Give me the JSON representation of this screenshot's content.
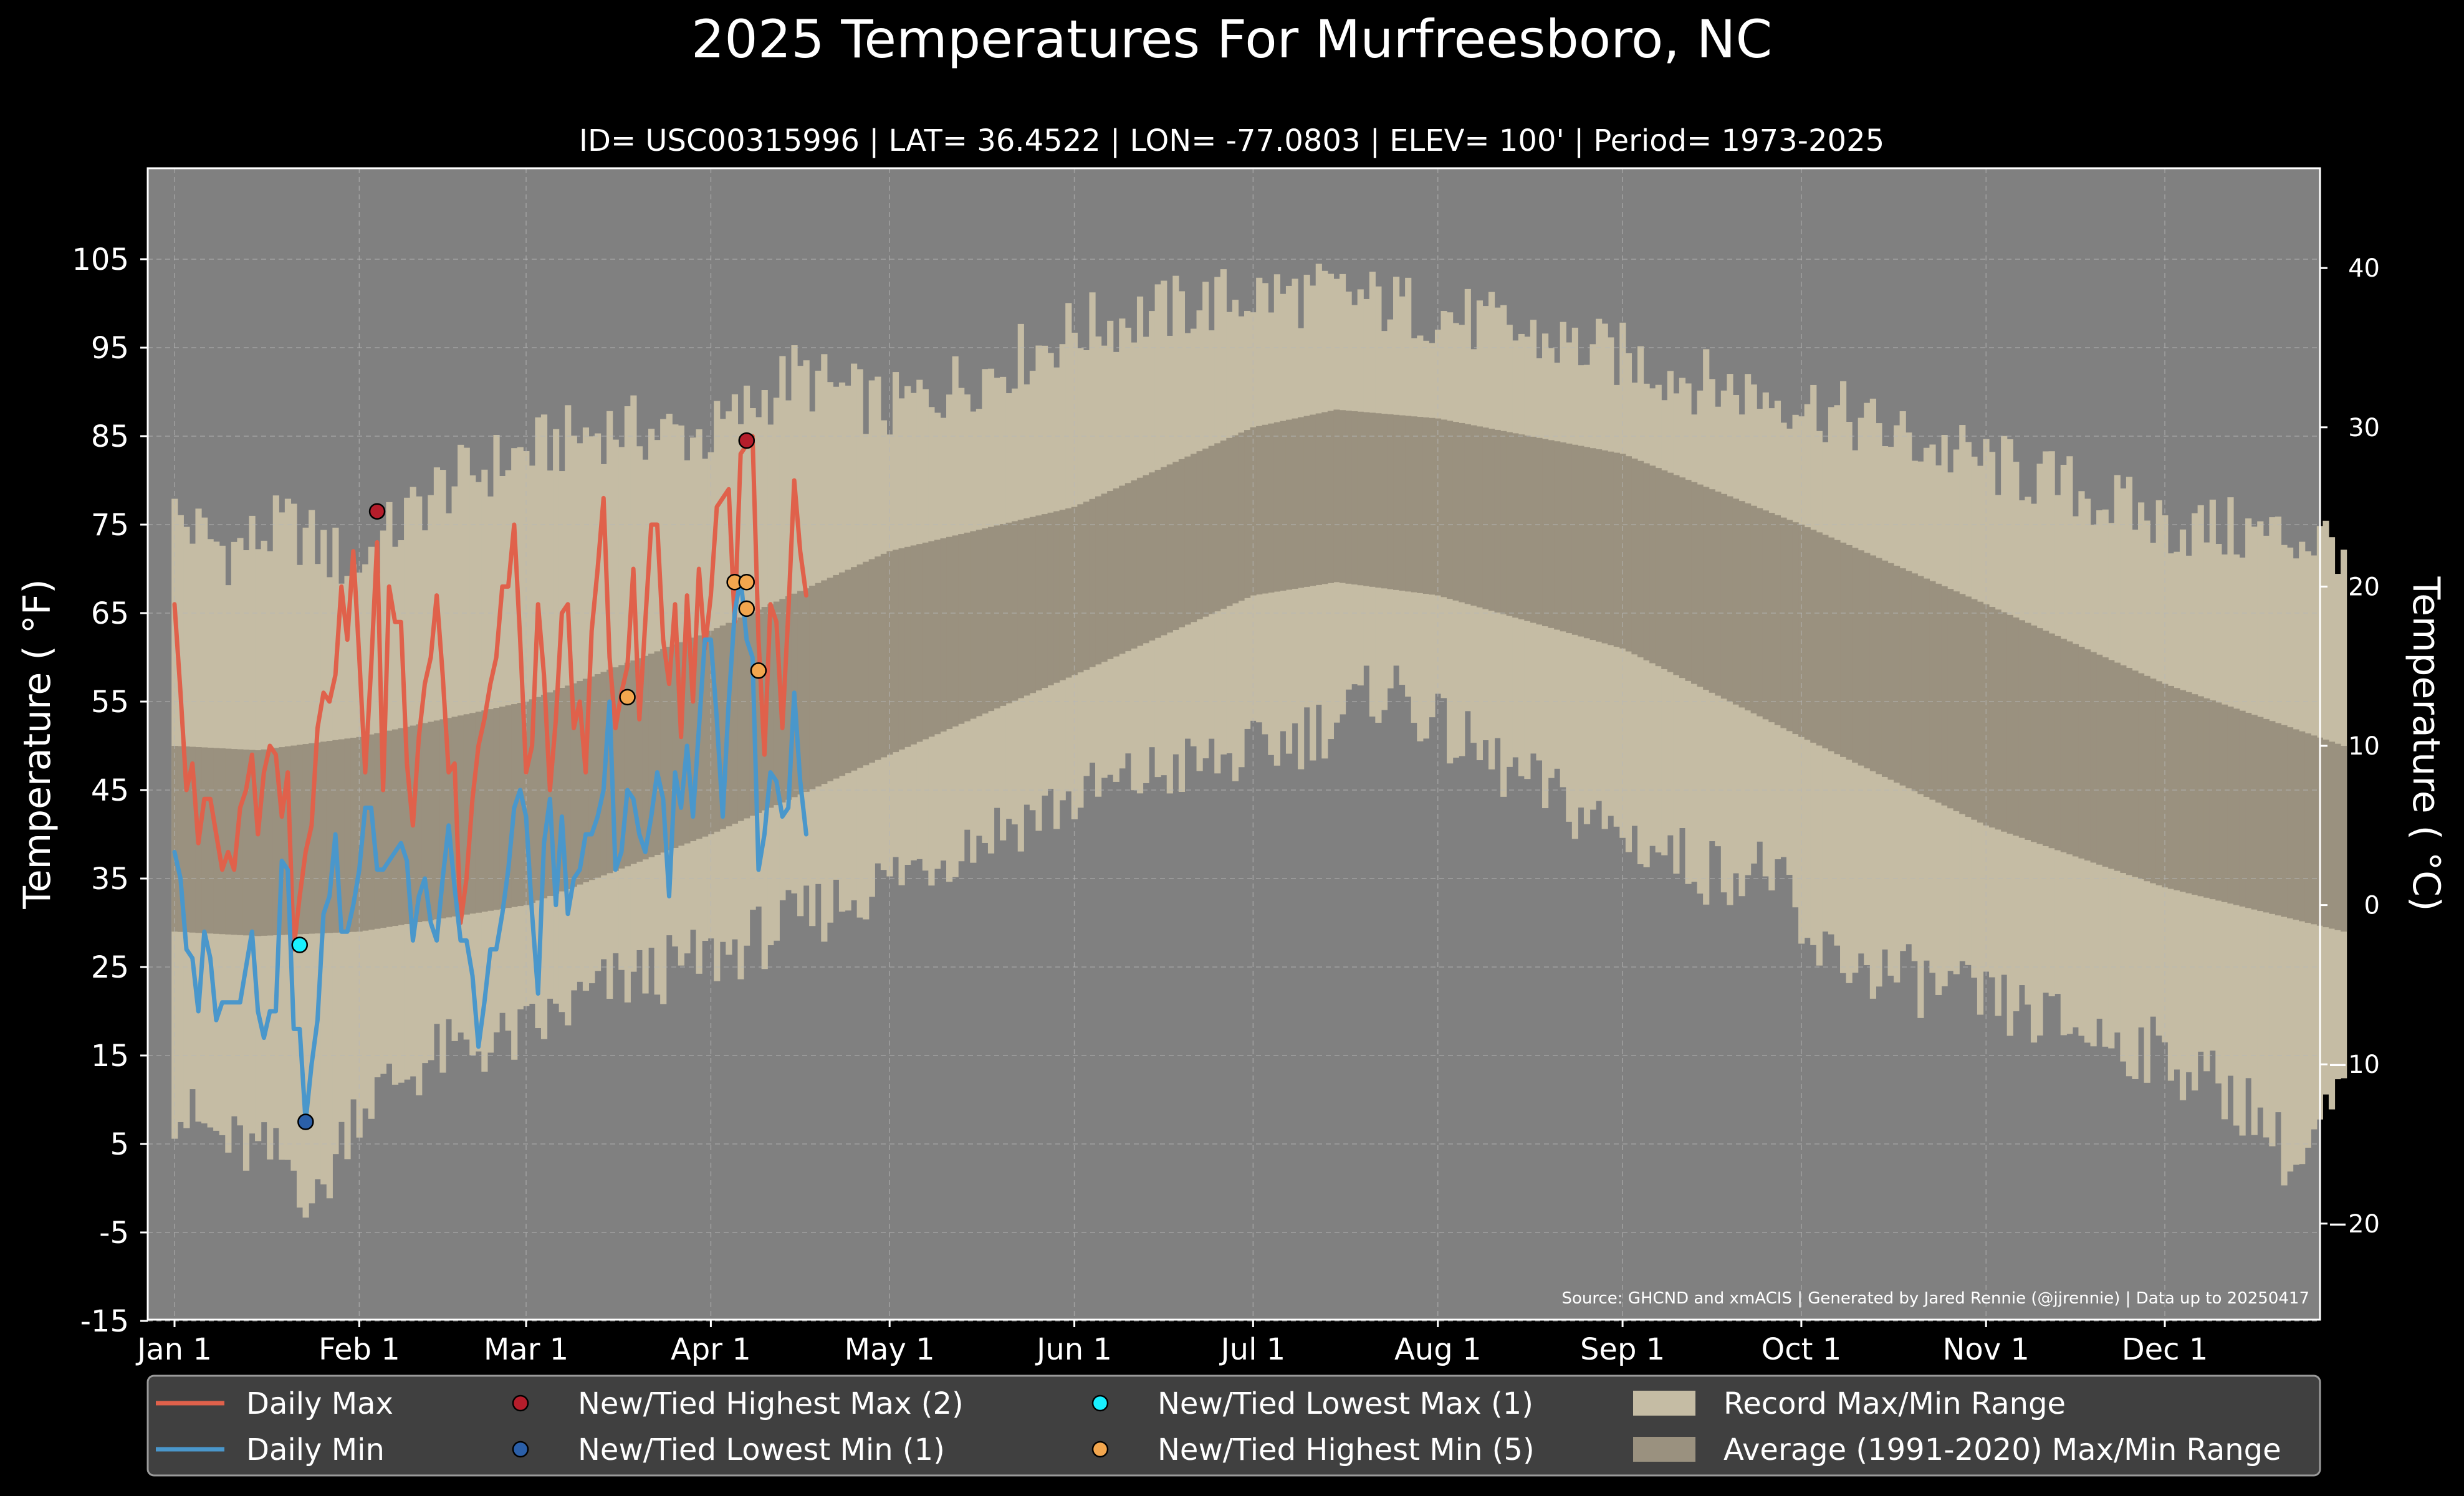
{
  "chart_data": {
    "type": "line",
    "title": "2025 Temperatures For Murfreesboro, NC",
    "subtitle": "ID= USC00315996 | LAT= 36.4522 | LON= -77.0803 | ELEV= 100' | Period= 1973-2025",
    "ylabel": "Temperature ( °F)",
    "ylabel_right": "Temperature ( °C)",
    "source": "Source: GHCND and xmACIS | Generated by Jared Rennie (@jjrennie) | Data up to 20250417",
    "ylim": [
      -15,
      115
    ],
    "y_ticks": [
      -15,
      -5,
      5,
      15,
      25,
      35,
      45,
      55,
      65,
      75,
      85,
      95,
      105
    ],
    "y_ticks_right": [
      -20,
      -10,
      0,
      10,
      20,
      30,
      40
    ],
    "y_tick_labels_right": [
      "−20",
      "−10",
      "0",
      "10",
      "20",
      "30",
      "40"
    ],
    "x_ticks": [
      {
        "day": 1,
        "label": "Jan 1"
      },
      {
        "day": 32,
        "label": "Feb 1"
      },
      {
        "day": 60,
        "label": "Mar 1"
      },
      {
        "day": 91,
        "label": "Apr 1"
      },
      {
        "day": 121,
        "label": "May 1"
      },
      {
        "day": 152,
        "label": "Jun 1"
      },
      {
        "day": 182,
        "label": "Jul 1"
      },
      {
        "day": 213,
        "label": "Aug 1"
      },
      {
        "day": 244,
        "label": "Sep 1"
      },
      {
        "day": 274,
        "label": "Oct 1"
      },
      {
        "day": 305,
        "label": "Nov 1"
      },
      {
        "day": 335,
        "label": "Dec 1"
      }
    ],
    "grid": true,
    "legend_position": "bottom",
    "record_max_anchors": [
      [
        1,
        76
      ],
      [
        10,
        72
      ],
      [
        20,
        75
      ],
      [
        31,
        70
      ],
      [
        45,
        79
      ],
      [
        59,
        83
      ],
      [
        74,
        86
      ],
      [
        91,
        85
      ],
      [
        105,
        92
      ],
      [
        121,
        88
      ],
      [
        140,
        93
      ],
      [
        152,
        97
      ],
      [
        166,
        99
      ],
      [
        182,
        101
      ],
      [
        196,
        101
      ],
      [
        213,
        99
      ],
      [
        230,
        96
      ],
      [
        244,
        94
      ],
      [
        258,
        91
      ],
      [
        274,
        89
      ],
      [
        290,
        85
      ],
      [
        305,
        82
      ],
      [
        320,
        79
      ],
      [
        335,
        75
      ],
      [
        350,
        74
      ],
      [
        365,
        73
      ]
    ],
    "record_min_anchors": [
      [
        1,
        9
      ],
      [
        10,
        5
      ],
      [
        20,
        3
      ],
      [
        25,
        -2
      ],
      [
        31,
        9
      ],
      [
        45,
        15
      ],
      [
        59,
        17
      ],
      [
        74,
        23
      ],
      [
        91,
        26
      ],
      [
        105,
        30
      ],
      [
        121,
        35
      ],
      [
        140,
        41
      ],
      [
        152,
        44
      ],
      [
        166,
        47
      ],
      [
        182,
        49
      ],
      [
        196,
        53
      ],
      [
        205,
        57
      ],
      [
        213,
        52
      ],
      [
        230,
        45
      ],
      [
        244,
        40
      ],
      [
        258,
        36
      ],
      [
        270,
        36
      ],
      [
        274,
        27
      ],
      [
        290,
        24
      ],
      [
        305,
        21
      ],
      [
        320,
        18
      ],
      [
        335,
        15
      ],
      [
        350,
        9
      ],
      [
        357,
        2
      ],
      [
        365,
        11
      ]
    ],
    "avg_max_anchors": [
      [
        1,
        50
      ],
      [
        15,
        49.5
      ],
      [
        32,
        51
      ],
      [
        60,
        55
      ],
      [
        91,
        63
      ],
      [
        121,
        72
      ],
      [
        152,
        77
      ],
      [
        182,
        86
      ],
      [
        196,
        88
      ],
      [
        213,
        87
      ],
      [
        244,
        83
      ],
      [
        274,
        75
      ],
      [
        305,
        66
      ],
      [
        335,
        57
      ],
      [
        365,
        50
      ]
    ],
    "avg_min_anchors": [
      [
        1,
        29
      ],
      [
        15,
        28.5
      ],
      [
        32,
        29
      ],
      [
        60,
        32
      ],
      [
        91,
        40
      ],
      [
        121,
        49
      ],
      [
        152,
        58
      ],
      [
        182,
        67
      ],
      [
        196,
        68.5
      ],
      [
        213,
        67
      ],
      [
        244,
        61
      ],
      [
        274,
        51
      ],
      [
        305,
        41
      ],
      [
        335,
        34
      ],
      [
        365,
        29
      ]
    ],
    "series": [
      {
        "name": "Daily Max",
        "color": "#e0614b",
        "x": [
          1,
          2,
          3,
          4,
          5,
          6,
          7,
          8,
          9,
          10,
          11,
          12,
          13,
          14,
          15,
          16,
          17,
          18,
          19,
          20,
          21,
          22,
          23,
          24,
          25,
          26,
          27,
          28,
          29,
          30,
          31,
          32,
          33,
          34,
          35,
          36,
          37,
          38,
          39,
          40,
          41,
          42,
          43,
          44,
          45,
          46,
          47,
          48,
          49,
          50,
          51,
          52,
          53,
          54,
          55,
          56,
          57,
          58,
          59,
          60,
          61,
          62,
          63,
          64,
          65,
          66,
          67,
          68,
          69,
          70,
          71,
          72,
          73,
          74,
          75,
          76,
          77,
          78,
          79,
          80,
          81,
          82,
          83,
          84,
          85,
          86,
          87,
          88,
          89,
          90,
          91,
          92,
          93,
          94,
          95,
          96,
          97,
          98,
          99,
          100,
          101,
          102,
          103,
          104,
          105,
          106,
          107
        ],
        "y": [
          66,
          56,
          45,
          48,
          39,
          44,
          44,
          40,
          36,
          38,
          36,
          43,
          45,
          49,
          40,
          47,
          50,
          49,
          42,
          47,
          27,
          33,
          38,
          41,
          52,
          56,
          55,
          58,
          68,
          62,
          72,
          60,
          47,
          59,
          73,
          45,
          68,
          64,
          64,
          48,
          41,
          51,
          57,
          60,
          67,
          58,
          47,
          48,
          30,
          35,
          44,
          50,
          53,
          57,
          60,
          68,
          68,
          75,
          62,
          47,
          50,
          66,
          58,
          45,
          53,
          65,
          66,
          52,
          55,
          47,
          63,
          70,
          78,
          60,
          52,
          56,
          59,
          70,
          53,
          64,
          75,
          75,
          62,
          57,
          66,
          51,
          67,
          55,
          70,
          61,
          67,
          77,
          78,
          79,
          64,
          83,
          84,
          85,
          62,
          49,
          66,
          64,
          52,
          65,
          80,
          72,
          67
        ]
      },
      {
        "name": "Daily Min",
        "color": "#4a97cb",
        "x": [
          1,
          2,
          3,
          4,
          5,
          6,
          7,
          8,
          9,
          10,
          11,
          12,
          13,
          14,
          15,
          16,
          17,
          18,
          19,
          20,
          21,
          22,
          23,
          24,
          25,
          26,
          27,
          28,
          29,
          30,
          31,
          32,
          33,
          34,
          35,
          36,
          37,
          38,
          39,
          40,
          41,
          42,
          43,
          44,
          45,
          46,
          47,
          48,
          49,
          50,
          51,
          52,
          53,
          54,
          55,
          56,
          57,
          58,
          59,
          60,
          61,
          62,
          63,
          64,
          65,
          66,
          67,
          68,
          69,
          70,
          71,
          72,
          73,
          74,
          75,
          76,
          77,
          78,
          79,
          80,
          81,
          82,
          83,
          84,
          85,
          86,
          87,
          88,
          89,
          90,
          91,
          92,
          93,
          94,
          95,
          96,
          97,
          98,
          99,
          100,
          101,
          102,
          103,
          104,
          105,
          106,
          107
        ],
        "y": [
          38,
          35,
          27,
          26,
          20,
          29,
          26,
          19,
          21,
          21,
          21,
          21,
          25,
          29,
          20,
          17,
          20,
          20,
          37,
          36,
          18,
          18,
          7.5,
          14,
          19,
          31,
          33,
          40,
          29,
          29,
          32,
          36,
          43,
          43,
          36,
          36,
          37,
          38,
          39,
          37,
          28,
          33,
          35,
          30,
          28,
          35,
          41,
          34,
          28,
          28,
          24,
          16,
          21,
          27,
          27,
          31,
          36,
          43,
          45,
          42,
          31,
          22,
          39,
          44,
          32,
          42,
          31,
          35,
          36,
          40,
          40,
          42,
          45,
          55,
          36,
          38,
          45,
          44,
          40,
          38,
          42,
          47,
          44,
          33,
          47,
          43,
          50,
          42,
          52,
          62,
          62,
          53,
          42,
          55,
          65,
          69,
          62,
          60,
          36,
          40,
          47,
          46,
          42,
          43,
          56,
          46,
          40
        ]
      }
    ],
    "markers": [
      {
        "name": "New/Tied Highest Max (2)",
        "color": "#b51d2b",
        "points": [
          [
            35,
            76.5
          ],
          [
            97,
            84.5
          ]
        ]
      },
      {
        "name": "New/Tied Lowest Min (1)",
        "color": "#2b5fa8",
        "points": [
          [
            23,
            7.5
          ]
        ]
      },
      {
        "name": "New/Tied Lowest Max (1)",
        "color": "#19f0ff",
        "points": [
          [
            22,
            27.5
          ]
        ]
      },
      {
        "name": "New/Tied Highest Min (5)",
        "color": "#f2a64e",
        "points": [
          [
            77,
            55.5
          ],
          [
            95,
            68.5
          ],
          [
            97,
            68.5
          ],
          [
            97,
            65.5
          ],
          [
            99,
            58.5
          ]
        ]
      }
    ],
    "legend": [
      {
        "kind": "line",
        "label": "Daily Max",
        "color": "#e0614b"
      },
      {
        "kind": "line",
        "label": "Daily Min",
        "color": "#4a97cb"
      },
      {
        "kind": "marker",
        "label": "New/Tied Highest Max (2)",
        "color": "#b51d2b"
      },
      {
        "kind": "marker",
        "label": "New/Tied Lowest Min (1)",
        "color": "#2b5fa8"
      },
      {
        "kind": "marker",
        "label": "New/Tied Lowest Max (1)",
        "color": "#19f0ff"
      },
      {
        "kind": "marker",
        "label": "New/Tied Highest Min (5)",
        "color": "#f2a64e"
      },
      {
        "kind": "patch",
        "label": "Record Max/Min Range",
        "color": "#c5bca4"
      },
      {
        "kind": "patch",
        "label": "Average (1991-2020) Max/Min Range",
        "color": "#9a917f"
      }
    ],
    "colors": {
      "background": "#000000",
      "plot_background": "#808080",
      "record_range": "#c5bca4",
      "average_range": "#9a917f",
      "axis": "#ffffff",
      "legend_background": "#404040"
    }
  }
}
